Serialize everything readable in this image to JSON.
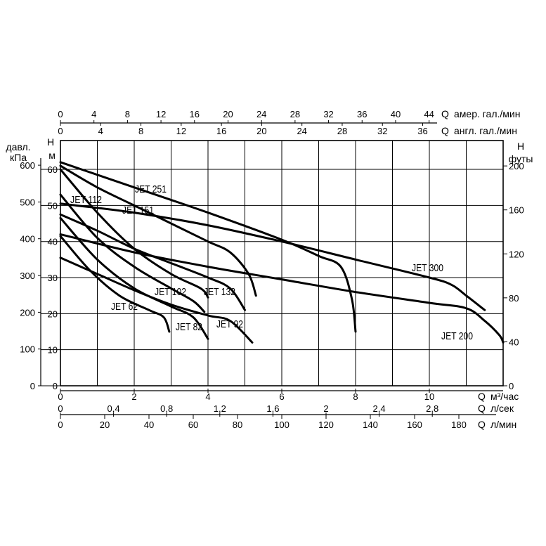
{
  "chart_data": {
    "type": "line",
    "x_axes": [
      {
        "q": "Q",
        "unit": "м³/час",
        "ticks": [
          "0",
          "2",
          "4",
          "6",
          "8",
          "10"
        ]
      },
      {
        "q": "Q",
        "unit": "л/сек",
        "ticks": [
          "0",
          "0,4",
          "0,8",
          "1,2",
          "1,6",
          "2",
          "2,4",
          "2,8"
        ]
      },
      {
        "q": "Q",
        "unit": "л/мин",
        "ticks": [
          "0",
          "20",
          "40",
          "60",
          "80",
          "100",
          "120",
          "140",
          "160",
          "180"
        ]
      },
      {
        "q": "Q",
        "unit": "амер. гал./мин",
        "ticks": [
          "0",
          "4",
          "8",
          "12",
          "16",
          "20",
          "24",
          "28",
          "32",
          "36",
          "40",
          "44"
        ]
      },
      {
        "q": "Q",
        "unit": "англ. гал./мин",
        "ticks": [
          "0",
          "4",
          "8",
          "12",
          "16",
          "20",
          "24",
          "28",
          "32",
          "36"
        ]
      }
    ],
    "y_axes": [
      {
        "label_lines": [
          "давл.",
          "кПа"
        ],
        "ticks": [
          "0",
          "100",
          "200",
          "300",
          "400",
          "500",
          "600"
        ]
      },
      {
        "label_lines": [
          "H",
          "м"
        ],
        "ticks": [
          "0",
          "10",
          "20",
          "30",
          "40",
          "50",
          "60"
        ]
      },
      {
        "label_lines": [
          "H",
          "футы"
        ],
        "ticks": [
          "0",
          "40",
          "80",
          "120",
          "160",
          "200"
        ]
      }
    ],
    "x_range_m3h": [
      0,
      12
    ],
    "y_range_m": [
      0,
      68
    ],
    "grid": true,
    "series": [
      {
        "name": "JET 62",
        "x": [
          0,
          0.8,
          1.6,
          2.4,
          2.8,
          2.95
        ],
        "y": [
          41.5,
          32,
          25,
          21,
          19,
          15
        ]
      },
      {
        "name": "JET 82",
        "x": [
          0,
          1.0,
          2.0,
          3.0,
          3.6,
          4.0
        ],
        "y": [
          46.5,
          35,
          27,
          22,
          19,
          13
        ]
      },
      {
        "name": "JET 92",
        "x": [
          0,
          1.0,
          2.0,
          3.0,
          4.0,
          4.6,
          5.2
        ],
        "y": [
          35.5,
          31,
          26.5,
          22.5,
          19.5,
          18,
          12
        ]
      },
      {
        "name": "JET 102",
        "x": [
          0,
          1.0,
          2.0,
          3.0,
          3.6,
          3.9
        ],
        "y": [
          53,
          41,
          33,
          27,
          23.5,
          20.5
        ]
      },
      {
        "name": "JET 112",
        "x": [
          0,
          1.0,
          2.0,
          3.0,
          3.8,
          4.0
        ],
        "y": [
          60,
          48,
          38,
          31,
          27,
          24.5
        ]
      },
      {
        "name": "JET 132",
        "x": [
          0,
          1.0,
          2.0,
          3.0,
          4.0,
          4.6,
          5.0
        ],
        "y": [
          47.5,
          43,
          38,
          34,
          30,
          27,
          21
        ]
      },
      {
        "name": "JET 151",
        "x": [
          0,
          1.0,
          2.0,
          3.0,
          4.0,
          4.6,
          5.1,
          5.3
        ],
        "y": [
          61,
          55,
          50,
          45,
          40,
          37,
          31,
          25
        ]
      },
      {
        "name": "JET 251",
        "x": [
          0,
          2.0,
          4.0,
          6.0,
          7.0,
          7.6,
          7.9,
          8.0
        ],
        "y": [
          62,
          55,
          48,
          40.5,
          36,
          33,
          24,
          15
        ]
      },
      {
        "name": "JET 300",
        "x": [
          0,
          2.0,
          4.0,
          6.0,
          8.0,
          10.0,
          10.6,
          11.0,
          11.5
        ],
        "y": [
          50.5,
          48,
          44.5,
          40,
          35,
          30,
          28,
          25,
          21
        ]
      },
      {
        "name": "JET 200",
        "x": [
          0,
          2.0,
          4.0,
          6.0,
          8.0,
          10.0,
          11.0,
          11.5,
          11.9,
          12.0
        ],
        "y": [
          42,
          37,
          33,
          29.5,
          26,
          23,
          21.5,
          18,
          14,
          12
        ]
      }
    ]
  }
}
